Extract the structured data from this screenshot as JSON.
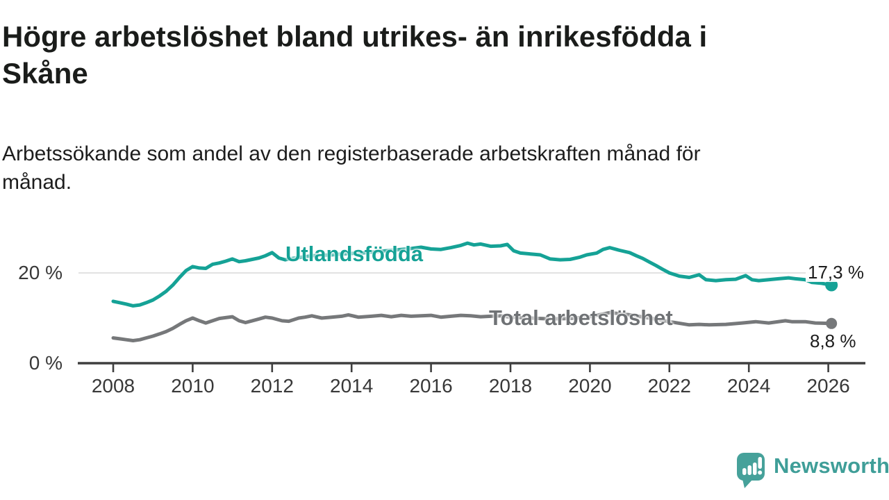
{
  "title": "Högre arbetslöshet bland utrikes- än inrikesfödda i Skåne",
  "subtitle": "Arbetssökande som andel av den registerbaserade arbetskraften månad för månad.",
  "branding": {
    "name": "Newsworthy",
    "logo_icon": "speech-bubble-bar-chart-icon",
    "logo_color": "#46a19a",
    "text_color": "#3f9e98"
  },
  "colors": {
    "foreign_born_line": "#15a296",
    "total_line": "#76787a",
    "gridline": "#d9d9d9",
    "axis": "#3f3f3f",
    "tick_text": "#383838"
  },
  "chart_data": {
    "type": "line",
    "title": "Högre arbetslöshet bland utrikes- än inrikesfödda i Skåne",
    "subtitle": "Arbetssökande som andel av den registerbaserade arbetskraften månad för månad.",
    "x_axis": {
      "ticks": [
        2008,
        2010,
        2012,
        2014,
        2016,
        2018,
        2020,
        2022,
        2024,
        2026
      ],
      "range": [
        2007.1,
        2026.9
      ]
    },
    "y_axis": {
      "unit": "%",
      "range": [
        0,
        30
      ],
      "ticks": [
        {
          "value": 0,
          "label": "0 %",
          "line": "axis"
        },
        {
          "value": 20,
          "label": "20 %",
          "line": "grid"
        }
      ]
    },
    "legend_position": "inline-labels",
    "grid": "horizontal-20-only",
    "series": [
      {
        "name": "Utlandsfödda",
        "color": "#15a296",
        "end_label": "17,3 %",
        "end_value": 17.3,
        "points": [
          [
            2008.0,
            13.7
          ],
          [
            2008.17,
            13.4
          ],
          [
            2008.33,
            13.1
          ],
          [
            2008.5,
            12.7
          ],
          [
            2008.67,
            12.9
          ],
          [
            2008.83,
            13.4
          ],
          [
            2009.0,
            14.0
          ],
          [
            2009.17,
            14.9
          ],
          [
            2009.33,
            15.9
          ],
          [
            2009.5,
            17.3
          ],
          [
            2009.67,
            19.0
          ],
          [
            2009.83,
            20.5
          ],
          [
            2010.0,
            21.4
          ],
          [
            2010.17,
            21.1
          ],
          [
            2010.33,
            21.0
          ],
          [
            2010.5,
            21.9
          ],
          [
            2010.67,
            22.2
          ],
          [
            2010.83,
            22.6
          ],
          [
            2011.0,
            23.1
          ],
          [
            2011.17,
            22.5
          ],
          [
            2011.33,
            22.7
          ],
          [
            2011.5,
            23.0
          ],
          [
            2011.67,
            23.3
          ],
          [
            2011.83,
            23.8
          ],
          [
            2012.0,
            24.5
          ],
          [
            2012.17,
            23.3
          ],
          [
            2012.33,
            22.9
          ],
          [
            2012.5,
            23.2
          ],
          [
            2012.67,
            23.4
          ],
          [
            2012.83,
            23.6
          ],
          [
            2013.0,
            23.8
          ],
          [
            2013.25,
            23.9
          ],
          [
            2013.5,
            24.0
          ],
          [
            2013.75,
            24.2
          ],
          [
            2014.0,
            24.3
          ],
          [
            2014.25,
            24.4
          ],
          [
            2014.5,
            24.6
          ],
          [
            2014.75,
            24.8
          ],
          [
            2015.0,
            25.0
          ],
          [
            2015.25,
            25.2
          ],
          [
            2015.5,
            25.4
          ],
          [
            2015.75,
            25.7
          ],
          [
            2016.0,
            25.3
          ],
          [
            2016.25,
            25.2
          ],
          [
            2016.5,
            25.6
          ],
          [
            2016.75,
            26.1
          ],
          [
            2016.92,
            26.6
          ],
          [
            2017.08,
            26.2
          ],
          [
            2017.25,
            26.4
          ],
          [
            2017.5,
            25.9
          ],
          [
            2017.75,
            26.0
          ],
          [
            2017.92,
            26.3
          ],
          [
            2018.08,
            24.9
          ],
          [
            2018.25,
            24.4
          ],
          [
            2018.5,
            24.2
          ],
          [
            2018.75,
            24.0
          ],
          [
            2019.0,
            23.1
          ],
          [
            2019.25,
            22.9
          ],
          [
            2019.5,
            23.0
          ],
          [
            2019.75,
            23.5
          ],
          [
            2019.92,
            24.0
          ],
          [
            2020.17,
            24.4
          ],
          [
            2020.33,
            25.2
          ],
          [
            2020.5,
            25.6
          ],
          [
            2020.75,
            25.0
          ],
          [
            2021.0,
            24.5
          ],
          [
            2021.17,
            23.8
          ],
          [
            2021.33,
            23.2
          ],
          [
            2021.5,
            22.4
          ],
          [
            2021.67,
            21.6
          ],
          [
            2021.83,
            20.8
          ],
          [
            2022.0,
            20.0
          ],
          [
            2022.25,
            19.3
          ],
          [
            2022.5,
            19.0
          ],
          [
            2022.75,
            19.6
          ],
          [
            2022.92,
            18.5
          ],
          [
            2023.17,
            18.3
          ],
          [
            2023.42,
            18.5
          ],
          [
            2023.67,
            18.6
          ],
          [
            2023.92,
            19.4
          ],
          [
            2024.08,
            18.5
          ],
          [
            2024.25,
            18.3
          ],
          [
            2024.5,
            18.5
          ],
          [
            2024.75,
            18.7
          ],
          [
            2025.0,
            18.9
          ],
          [
            2025.17,
            18.7
          ],
          [
            2025.42,
            18.5
          ],
          [
            2025.58,
            17.9
          ],
          [
            2025.83,
            17.7
          ],
          [
            2026.08,
            17.3
          ]
        ]
      },
      {
        "name": "Total arbetslöshet",
        "color": "#76787a",
        "end_label": "8,8 %",
        "end_value": 8.8,
        "points": [
          [
            2008.0,
            5.6
          ],
          [
            2008.17,
            5.4
          ],
          [
            2008.33,
            5.2
          ],
          [
            2008.5,
            5.0
          ],
          [
            2008.67,
            5.2
          ],
          [
            2008.83,
            5.6
          ],
          [
            2009.0,
            6.0
          ],
          [
            2009.17,
            6.5
          ],
          [
            2009.33,
            7.0
          ],
          [
            2009.5,
            7.7
          ],
          [
            2009.67,
            8.6
          ],
          [
            2009.83,
            9.4
          ],
          [
            2010.0,
            10.0
          ],
          [
            2010.17,
            9.4
          ],
          [
            2010.33,
            8.9
          ],
          [
            2010.5,
            9.4
          ],
          [
            2010.67,
            9.9
          ],
          [
            2010.83,
            10.1
          ],
          [
            2011.0,
            10.3
          ],
          [
            2011.17,
            9.4
          ],
          [
            2011.33,
            9.0
          ],
          [
            2011.5,
            9.4
          ],
          [
            2011.67,
            9.8
          ],
          [
            2011.83,
            10.2
          ],
          [
            2012.0,
            10.0
          ],
          [
            2012.25,
            9.4
          ],
          [
            2012.42,
            9.3
          ],
          [
            2012.67,
            10.0
          ],
          [
            2012.83,
            10.2
          ],
          [
            2013.0,
            10.5
          ],
          [
            2013.25,
            10.0
          ],
          [
            2013.5,
            10.2
          ],
          [
            2013.75,
            10.4
          ],
          [
            2013.92,
            10.7
          ],
          [
            2014.17,
            10.2
          ],
          [
            2014.5,
            10.4
          ],
          [
            2014.75,
            10.6
          ],
          [
            2015.0,
            10.3
          ],
          [
            2015.25,
            10.6
          ],
          [
            2015.5,
            10.4
          ],
          [
            2015.75,
            10.5
          ],
          [
            2016.0,
            10.6
          ],
          [
            2016.25,
            10.2
          ],
          [
            2016.5,
            10.4
          ],
          [
            2016.75,
            10.6
          ],
          [
            2017.0,
            10.5
          ],
          [
            2017.25,
            10.3
          ],
          [
            2017.5,
            10.4
          ],
          [
            2017.75,
            10.5
          ],
          [
            2018.0,
            10.2
          ],
          [
            2018.5,
            10.0
          ],
          [
            2019.0,
            9.8
          ],
          [
            2019.5,
            9.9
          ],
          [
            2020.0,
            10.3
          ],
          [
            2020.5,
            11.2
          ],
          [
            2021.0,
            10.7
          ],
          [
            2021.5,
            10.0
          ],
          [
            2022.0,
            9.2
          ],
          [
            2022.5,
            8.5
          ],
          [
            2022.75,
            8.6
          ],
          [
            2023.0,
            8.5
          ],
          [
            2023.42,
            8.6
          ],
          [
            2023.83,
            8.9
          ],
          [
            2024.17,
            9.2
          ],
          [
            2024.5,
            8.9
          ],
          [
            2024.92,
            9.4
          ],
          [
            2025.08,
            9.2
          ],
          [
            2025.42,
            9.2
          ],
          [
            2025.67,
            8.9
          ],
          [
            2026.08,
            8.8
          ]
        ]
      }
    ]
  }
}
